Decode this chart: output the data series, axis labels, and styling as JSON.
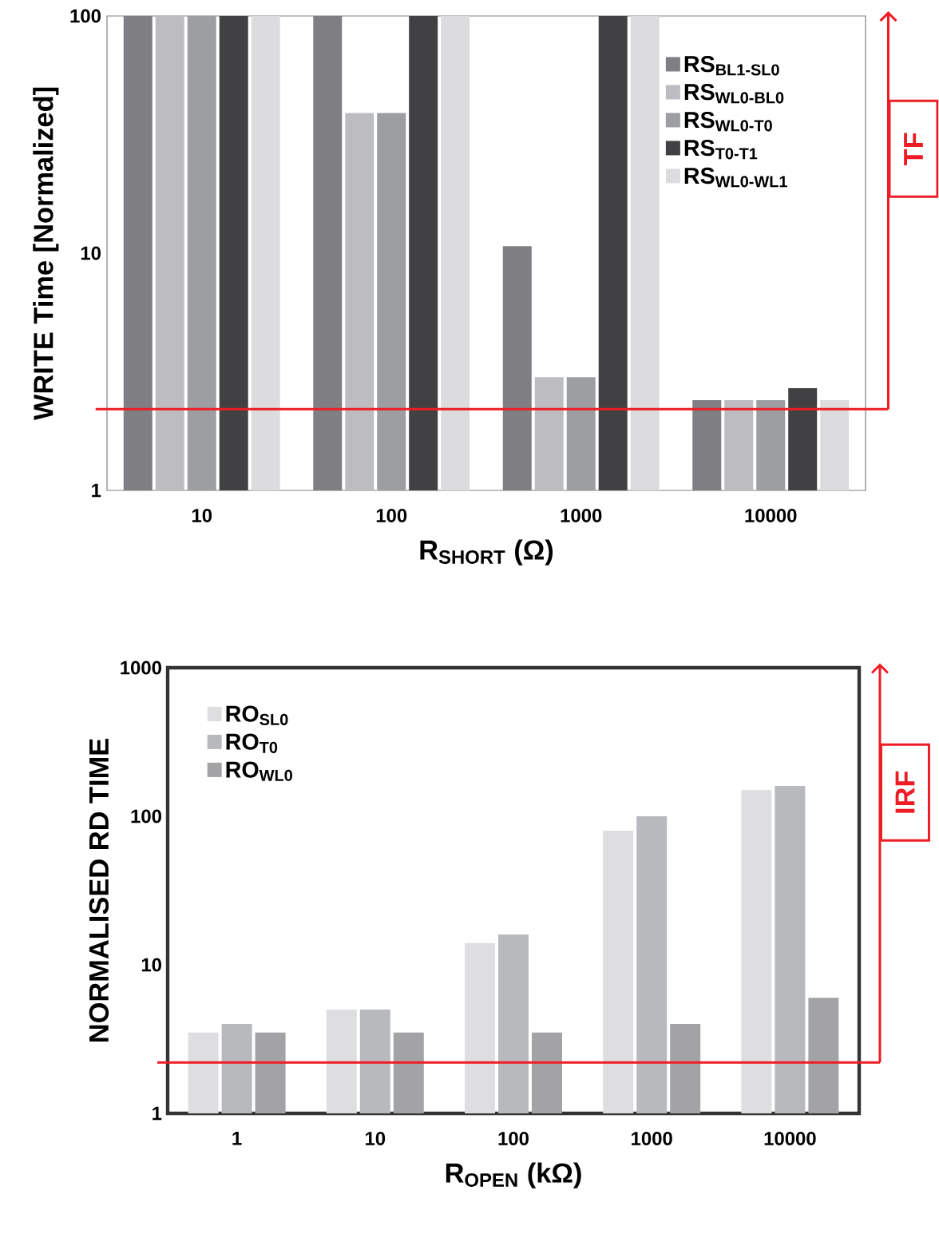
{
  "chart_data": [
    {
      "type": "bar",
      "xlabel": "R$_{SHORT}$ (Ω)",
      "ylabel": "WRITE Time [Normalized]",
      "categories": [
        "10",
        "100",
        "1000",
        "10000"
      ],
      "log": true,
      "ylim": [
        1,
        100
      ],
      "yticks": [
        1,
        10,
        100
      ],
      "legend": "top right",
      "series": [
        {
          "name": "RS$_{BL1-SL0}$",
          "color": "#7f7f83",
          "values": [
            100,
            100,
            10.7,
            2.4
          ]
        },
        {
          "name": "RS$_{WL0-BL0}$",
          "color": "#bdbdc1",
          "values": [
            100,
            39,
            3.0,
            2.4
          ]
        },
        {
          "name": "RS$_{WL0-T0}$",
          "color": "#9d9ea2",
          "values": [
            100,
            39,
            3.0,
            2.4
          ]
        },
        {
          "name": "RS$_{T0-T1}$",
          "color": "#414143",
          "values": [
            100,
            100,
            100,
            2.7
          ]
        },
        {
          "name": "RS$_{WL0-WL1}$",
          "color": "#dcdcde",
          "values": [
            100,
            100,
            100,
            2.4
          ]
        }
      ],
      "ref_lines": [
        {
          "axis": "y",
          "value": 2.2,
          "label": "TF",
          "color": "#ee1c25"
        }
      ]
    },
    {
      "type": "bar",
      "xlabel": "R$_{OPEN}$ (kΩ)",
      "ylabel": "NORMALISED RD TIME",
      "categories": [
        "1",
        "10",
        "100",
        "1000",
        "10000"
      ],
      "log": true,
      "ylim": [
        1,
        1000
      ],
      "yticks": [
        1,
        10,
        100,
        1000
      ],
      "legend": "top left",
      "series": [
        {
          "name": "RO$_{SL0}$",
          "color": "#dedee0",
          "values": [
            3.5,
            5,
            14,
            80,
            150
          ]
        },
        {
          "name": "RO$_{T0}$",
          "color": "#b8b9bd",
          "values": [
            4.0,
            5,
            16,
            100,
            160
          ]
        },
        {
          "name": "RO$_{WL0}$",
          "color": "#a3a3a6",
          "values": [
            3.5,
            3.5,
            3.5,
            4.0,
            6.0
          ]
        }
      ],
      "ref_lines": [
        {
          "axis": "y",
          "value": 2.2,
          "label": "IRF",
          "color": "#ee1c25"
        }
      ]
    }
  ]
}
